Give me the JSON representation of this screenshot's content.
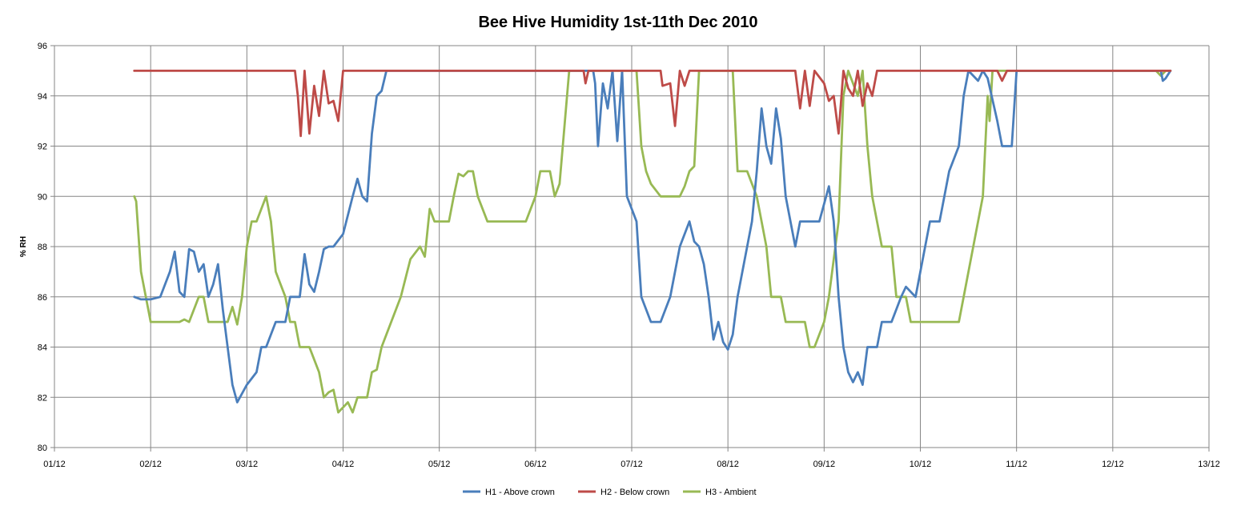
{
  "chart_data": {
    "type": "line",
    "title": "Bee Hive Humidity 1st-11th Dec 2010",
    "xlabel": "",
    "ylabel": "% RH",
    "x_ticks": [
      "01/12",
      "02/12",
      "03/12",
      "04/12",
      "05/12",
      "06/12",
      "07/12",
      "08/12",
      "09/12",
      "10/12",
      "11/12",
      "12/12",
      "13/12"
    ],
    "xlim": [
      1,
      13
    ],
    "ylim": [
      80,
      96
    ],
    "y_ticks": [
      80,
      82,
      84,
      86,
      88,
      90,
      92,
      94,
      96
    ],
    "grid": true,
    "legend_position": "bottom",
    "series": [
      {
        "name": "H1 - Above crown",
        "color": "#4a7ebb",
        "points": [
          [
            1.83,
            86
          ],
          [
            1.9,
            85.9
          ],
          [
            2.0,
            85.9
          ],
          [
            2.1,
            86
          ],
          [
            2.2,
            87
          ],
          [
            2.25,
            87.8
          ],
          [
            2.3,
            86.2
          ],
          [
            2.35,
            86
          ],
          [
            2.4,
            87.9
          ],
          [
            2.45,
            87.8
          ],
          [
            2.5,
            87
          ],
          [
            2.55,
            87.3
          ],
          [
            2.6,
            86
          ],
          [
            2.65,
            86.5
          ],
          [
            2.7,
            87.3
          ],
          [
            2.75,
            85.5
          ],
          [
            2.8,
            84
          ],
          [
            2.85,
            82.5
          ],
          [
            2.9,
            81.8
          ],
          [
            3.0,
            82.5
          ],
          [
            3.1,
            83
          ],
          [
            3.15,
            84
          ],
          [
            3.2,
            84
          ],
          [
            3.3,
            85
          ],
          [
            3.4,
            85
          ],
          [
            3.45,
            86
          ],
          [
            3.55,
            86
          ],
          [
            3.6,
            87.7
          ],
          [
            3.65,
            86.5
          ],
          [
            3.7,
            86.2
          ],
          [
            3.75,
            87
          ],
          [
            3.8,
            87.9
          ],
          [
            3.85,
            88
          ],
          [
            3.9,
            88
          ],
          [
            4.0,
            88.5
          ],
          [
            4.1,
            90
          ],
          [
            4.15,
            90.7
          ],
          [
            4.2,
            90
          ],
          [
            4.25,
            89.8
          ],
          [
            4.3,
            92.5
          ],
          [
            4.35,
            94
          ],
          [
            4.4,
            94.2
          ],
          [
            4.45,
            95
          ],
          [
            6.6,
            95
          ],
          [
            6.62,
            94.5
          ],
          [
            6.65,
            92
          ],
          [
            6.7,
            94.5
          ],
          [
            6.75,
            93.5
          ],
          [
            6.8,
            95
          ],
          [
            6.85,
            92.2
          ],
          [
            6.9,
            95
          ],
          [
            6.95,
            90
          ],
          [
            7.0,
            89.5
          ],
          [
            7.05,
            89
          ],
          [
            7.1,
            86
          ],
          [
            7.2,
            85
          ],
          [
            7.3,
            85
          ],
          [
            7.4,
            86
          ],
          [
            7.5,
            88
          ],
          [
            7.6,
            89
          ],
          [
            7.65,
            88.2
          ],
          [
            7.7,
            88
          ],
          [
            7.75,
            87.3
          ],
          [
            7.8,
            86
          ],
          [
            7.85,
            84.3
          ],
          [
            7.9,
            85
          ],
          [
            7.95,
            84.2
          ],
          [
            8.0,
            83.9
          ],
          [
            8.05,
            84.5
          ],
          [
            8.1,
            86
          ],
          [
            8.2,
            88
          ],
          [
            8.25,
            89
          ],
          [
            8.3,
            91
          ],
          [
            8.35,
            93.5
          ],
          [
            8.4,
            92
          ],
          [
            8.45,
            91.3
          ],
          [
            8.5,
            93.5
          ],
          [
            8.55,
            92.3
          ],
          [
            8.6,
            90
          ],
          [
            8.7,
            88
          ],
          [
            8.75,
            89
          ],
          [
            8.85,
            89
          ],
          [
            8.95,
            89
          ],
          [
            9.05,
            90.4
          ],
          [
            9.1,
            89
          ],
          [
            9.15,
            86
          ],
          [
            9.2,
            84
          ],
          [
            9.25,
            83
          ],
          [
            9.3,
            82.6
          ],
          [
            9.35,
            83
          ],
          [
            9.4,
            82.5
          ],
          [
            9.45,
            84
          ],
          [
            9.55,
            84
          ],
          [
            9.6,
            85
          ],
          [
            9.7,
            85
          ],
          [
            9.8,
            86
          ],
          [
            9.85,
            86.4
          ],
          [
            9.95,
            86
          ],
          [
            10.05,
            88
          ],
          [
            10.1,
            89
          ],
          [
            10.2,
            89
          ],
          [
            10.3,
            91
          ],
          [
            10.4,
            92
          ],
          [
            10.45,
            94
          ],
          [
            10.5,
            95
          ],
          [
            10.6,
            94.6
          ],
          [
            10.65,
            95
          ],
          [
            10.7,
            94.7
          ],
          [
            10.8,
            93
          ],
          [
            10.85,
            92
          ],
          [
            10.95,
            92
          ],
          [
            11.0,
            95
          ],
          [
            12.5,
            95
          ],
          [
            12.52,
            94.6
          ],
          [
            12.55,
            94.7
          ],
          [
            12.6,
            95
          ]
        ]
      },
      {
        "name": "H2 - Below crown",
        "color": "#be4b48",
        "points": [
          [
            1.83,
            95
          ],
          [
            3.5,
            95
          ],
          [
            3.53,
            94
          ],
          [
            3.56,
            92.4
          ],
          [
            3.6,
            95
          ],
          [
            3.65,
            92.5
          ],
          [
            3.7,
            94.4
          ],
          [
            3.75,
            93.2
          ],
          [
            3.8,
            95
          ],
          [
            3.85,
            93.7
          ],
          [
            3.9,
            93.8
          ],
          [
            3.95,
            93
          ],
          [
            4.0,
            95
          ],
          [
            6.5,
            95
          ],
          [
            6.52,
            94.5
          ],
          [
            6.55,
            95
          ],
          [
            7.3,
            95
          ],
          [
            7.32,
            94.4
          ],
          [
            7.4,
            94.5
          ],
          [
            7.45,
            92.8
          ],
          [
            7.5,
            95
          ],
          [
            7.55,
            94.4
          ],
          [
            7.6,
            95
          ],
          [
            8.7,
            95
          ],
          [
            8.75,
            93.5
          ],
          [
            8.8,
            95
          ],
          [
            8.85,
            93.6
          ],
          [
            8.9,
            95
          ],
          [
            9.0,
            94.5
          ],
          [
            9.05,
            93.8
          ],
          [
            9.1,
            94
          ],
          [
            9.15,
            92.5
          ],
          [
            9.2,
            95
          ],
          [
            9.25,
            94.3
          ],
          [
            9.3,
            94
          ],
          [
            9.35,
            95
          ],
          [
            9.4,
            93.6
          ],
          [
            9.45,
            94.5
          ],
          [
            9.5,
            94
          ],
          [
            9.55,
            95
          ],
          [
            10.8,
            95
          ],
          [
            10.85,
            94.6
          ],
          [
            10.9,
            95
          ],
          [
            12.6,
            95
          ]
        ]
      },
      {
        "name": "H3 - Ambient",
        "color": "#98b954",
        "points": [
          [
            1.83,
            90
          ],
          [
            1.85,
            89.8
          ],
          [
            1.9,
            87
          ],
          [
            2.0,
            85
          ],
          [
            2.1,
            85
          ],
          [
            2.2,
            85
          ],
          [
            2.3,
            85
          ],
          [
            2.35,
            85.1
          ],
          [
            2.4,
            85
          ],
          [
            2.5,
            86
          ],
          [
            2.55,
            86
          ],
          [
            2.6,
            85
          ],
          [
            2.7,
            85
          ],
          [
            2.8,
            85
          ],
          [
            2.85,
            85.6
          ],
          [
            2.9,
            84.9
          ],
          [
            2.95,
            86
          ],
          [
            3.0,
            88
          ],
          [
            3.05,
            89
          ],
          [
            3.1,
            89
          ],
          [
            3.15,
            89.5
          ],
          [
            3.2,
            90
          ],
          [
            3.25,
            89
          ],
          [
            3.3,
            87
          ],
          [
            3.4,
            86
          ],
          [
            3.45,
            85
          ],
          [
            3.5,
            85
          ],
          [
            3.55,
            84
          ],
          [
            3.65,
            84
          ],
          [
            3.75,
            83
          ],
          [
            3.8,
            82
          ],
          [
            3.85,
            82.2
          ],
          [
            3.9,
            82.3
          ],
          [
            3.95,
            81.4
          ],
          [
            4.05,
            81.8
          ],
          [
            4.1,
            81.4
          ],
          [
            4.15,
            82
          ],
          [
            4.25,
            82
          ],
          [
            4.3,
            83
          ],
          [
            4.35,
            83.1
          ],
          [
            4.4,
            84
          ],
          [
            4.5,
            85
          ],
          [
            4.6,
            86
          ],
          [
            4.7,
            87.5
          ],
          [
            4.8,
            88
          ],
          [
            4.85,
            87.6
          ],
          [
            4.9,
            89.5
          ],
          [
            4.95,
            89
          ],
          [
            5.0,
            89
          ],
          [
            5.1,
            89
          ],
          [
            5.15,
            90
          ],
          [
            5.2,
            90.9
          ],
          [
            5.25,
            90.8
          ],
          [
            5.3,
            91
          ],
          [
            5.35,
            91
          ],
          [
            5.4,
            90
          ],
          [
            5.5,
            89
          ],
          [
            5.6,
            89
          ],
          [
            5.7,
            89
          ],
          [
            5.8,
            89
          ],
          [
            5.9,
            89
          ],
          [
            6.0,
            90
          ],
          [
            6.05,
            91
          ],
          [
            6.15,
            91
          ],
          [
            6.2,
            90
          ],
          [
            6.25,
            90.5
          ],
          [
            6.35,
            95
          ],
          [
            7.05,
            95
          ],
          [
            7.1,
            92
          ],
          [
            7.15,
            91
          ],
          [
            7.2,
            90.5
          ],
          [
            7.3,
            90
          ],
          [
            7.4,
            90
          ],
          [
            7.5,
            90
          ],
          [
            7.55,
            90.4
          ],
          [
            7.6,
            91
          ],
          [
            7.65,
            91.2
          ],
          [
            7.7,
            95
          ],
          [
            8.05,
            95
          ],
          [
            8.1,
            91
          ],
          [
            8.2,
            91
          ],
          [
            8.3,
            90
          ],
          [
            8.35,
            89
          ],
          [
            8.4,
            88
          ],
          [
            8.45,
            86
          ],
          [
            8.55,
            86
          ],
          [
            8.6,
            85
          ],
          [
            8.7,
            85
          ],
          [
            8.8,
            85
          ],
          [
            8.85,
            84
          ],
          [
            8.9,
            84
          ],
          [
            9.0,
            85
          ],
          [
            9.05,
            86
          ],
          [
            9.15,
            89
          ],
          [
            9.2,
            94
          ],
          [
            9.25,
            95
          ],
          [
            9.3,
            94.5
          ],
          [
            9.35,
            94
          ],
          [
            9.4,
            95
          ],
          [
            9.45,
            92
          ],
          [
            9.5,
            90
          ],
          [
            9.55,
            89
          ],
          [
            9.6,
            88
          ],
          [
            9.7,
            88
          ],
          [
            9.75,
            86
          ],
          [
            9.85,
            86
          ],
          [
            9.9,
            85
          ],
          [
            10.0,
            85
          ],
          [
            10.1,
            85
          ],
          [
            10.2,
            85
          ],
          [
            10.3,
            85
          ],
          [
            10.35,
            85
          ],
          [
            10.4,
            85
          ],
          [
            10.45,
            86
          ],
          [
            10.5,
            87
          ],
          [
            10.55,
            88
          ],
          [
            10.6,
            89
          ],
          [
            10.65,
            90
          ],
          [
            10.7,
            94
          ],
          [
            10.72,
            93
          ],
          [
            10.75,
            95
          ],
          [
            10.85,
            95
          ],
          [
            11.0,
            95
          ],
          [
            12.45,
            95
          ],
          [
            12.5,
            94.8
          ],
          [
            12.55,
            95
          ],
          [
            12.6,
            95
          ]
        ]
      }
    ]
  }
}
